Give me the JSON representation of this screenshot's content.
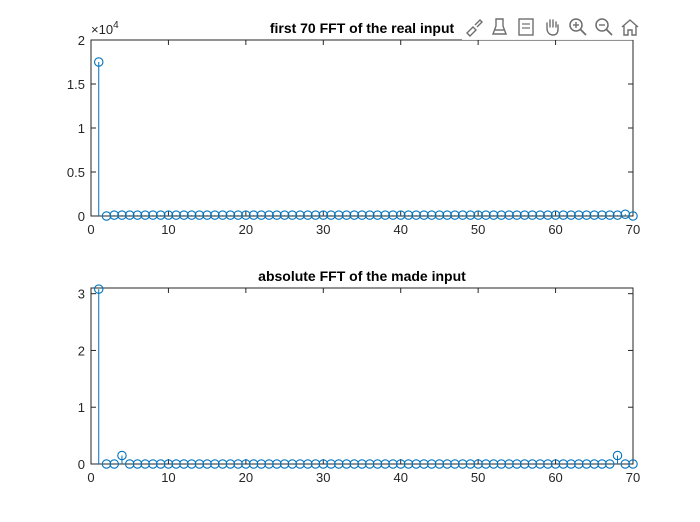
{
  "colors": {
    "stem": "#0072BD",
    "axis": "#262626"
  },
  "toolbar": {
    "icons": [
      "brush-icon",
      "legend-icon",
      "edit-icon",
      "pan-icon",
      "zoom-in-icon",
      "zoom-out-icon",
      "home-icon"
    ]
  },
  "chart_data": [
    {
      "type": "stem",
      "title": "first 70 FFT of the real input",
      "xlabel": "",
      "ylabel": "",
      "xlim": [
        0,
        70
      ],
      "ylim": [
        0,
        2
      ],
      "y_exponent_label": "×10",
      "y_exponent_power": "4",
      "xticks": [
        "0",
        "10",
        "20",
        "30",
        "40",
        "50",
        "60",
        "70"
      ],
      "yticks": [
        "0",
        "0.5",
        "1",
        "1.5",
        "2"
      ],
      "x": [
        1,
        2,
        3,
        4,
        5,
        6,
        7,
        8,
        9,
        10,
        11,
        12,
        13,
        14,
        15,
        16,
        17,
        18,
        19,
        20,
        21,
        22,
        23,
        24,
        25,
        26,
        27,
        28,
        29,
        30,
        31,
        32,
        33,
        34,
        35,
        36,
        37,
        38,
        39,
        40,
        41,
        42,
        43,
        44,
        45,
        46,
        47,
        48,
        49,
        50,
        51,
        52,
        53,
        54,
        55,
        56,
        57,
        58,
        59,
        60,
        61,
        62,
        63,
        64,
        65,
        66,
        67,
        68,
        69,
        70
      ],
      "y": [
        1.75,
        0,
        0.01,
        0.01,
        0.01,
        0.01,
        0.01,
        0.01,
        0.01,
        0.01,
        0.01,
        0.01,
        0.01,
        0.01,
        0.01,
        0.01,
        0.01,
        0.01,
        0.01,
        0.01,
        0.01,
        0.01,
        0.01,
        0.01,
        0.01,
        0.01,
        0.01,
        0.01,
        0.01,
        0.01,
        0.01,
        0.01,
        0.01,
        0.01,
        0.01,
        0.01,
        0.01,
        0.01,
        0.01,
        0.01,
        0.01,
        0.01,
        0.01,
        0.01,
        0.01,
        0.01,
        0.01,
        0.01,
        0.01,
        0.01,
        0.01,
        0.01,
        0.01,
        0.01,
        0.01,
        0.01,
        0.01,
        0.01,
        0.01,
        0.01,
        0.01,
        0.01,
        0.01,
        0.01,
        0.01,
        0.01,
        0.01,
        0.01,
        0.02,
        0
      ]
    },
    {
      "type": "stem",
      "title": "absolute FFT of the made input",
      "xlabel": "",
      "ylabel": "",
      "xlim": [
        0,
        70
      ],
      "ylim": [
        0,
        3.1
      ],
      "xticks": [
        "0",
        "10",
        "20",
        "30",
        "40",
        "50",
        "60",
        "70"
      ],
      "yticks": [
        "0",
        "1",
        "2",
        "3"
      ],
      "x": [
        1,
        2,
        3,
        4,
        5,
        6,
        7,
        8,
        9,
        10,
        11,
        12,
        13,
        14,
        15,
        16,
        17,
        18,
        19,
        20,
        21,
        22,
        23,
        24,
        25,
        26,
        27,
        28,
        29,
        30,
        31,
        32,
        33,
        34,
        35,
        36,
        37,
        38,
        39,
        40,
        41,
        42,
        43,
        44,
        45,
        46,
        47,
        48,
        49,
        50,
        51,
        52,
        53,
        54,
        55,
        56,
        57,
        58,
        59,
        60,
        61,
        62,
        63,
        64,
        65,
        66,
        67,
        68,
        69,
        70
      ],
      "y": [
        3.08,
        0,
        0,
        0.15,
        0,
        0,
        0,
        0,
        0,
        0,
        0,
        0,
        0,
        0,
        0,
        0,
        0,
        0,
        0,
        0,
        0,
        0,
        0,
        0,
        0,
        0,
        0,
        0,
        0,
        0,
        0,
        0,
        0,
        0,
        0,
        0,
        0,
        0,
        0,
        0,
        0,
        0,
        0,
        0,
        0,
        0,
        0,
        0,
        0,
        0,
        0,
        0,
        0,
        0,
        0,
        0,
        0,
        0,
        0,
        0,
        0,
        0,
        0,
        0,
        0,
        0,
        0,
        0.15,
        0,
        0
      ]
    }
  ]
}
